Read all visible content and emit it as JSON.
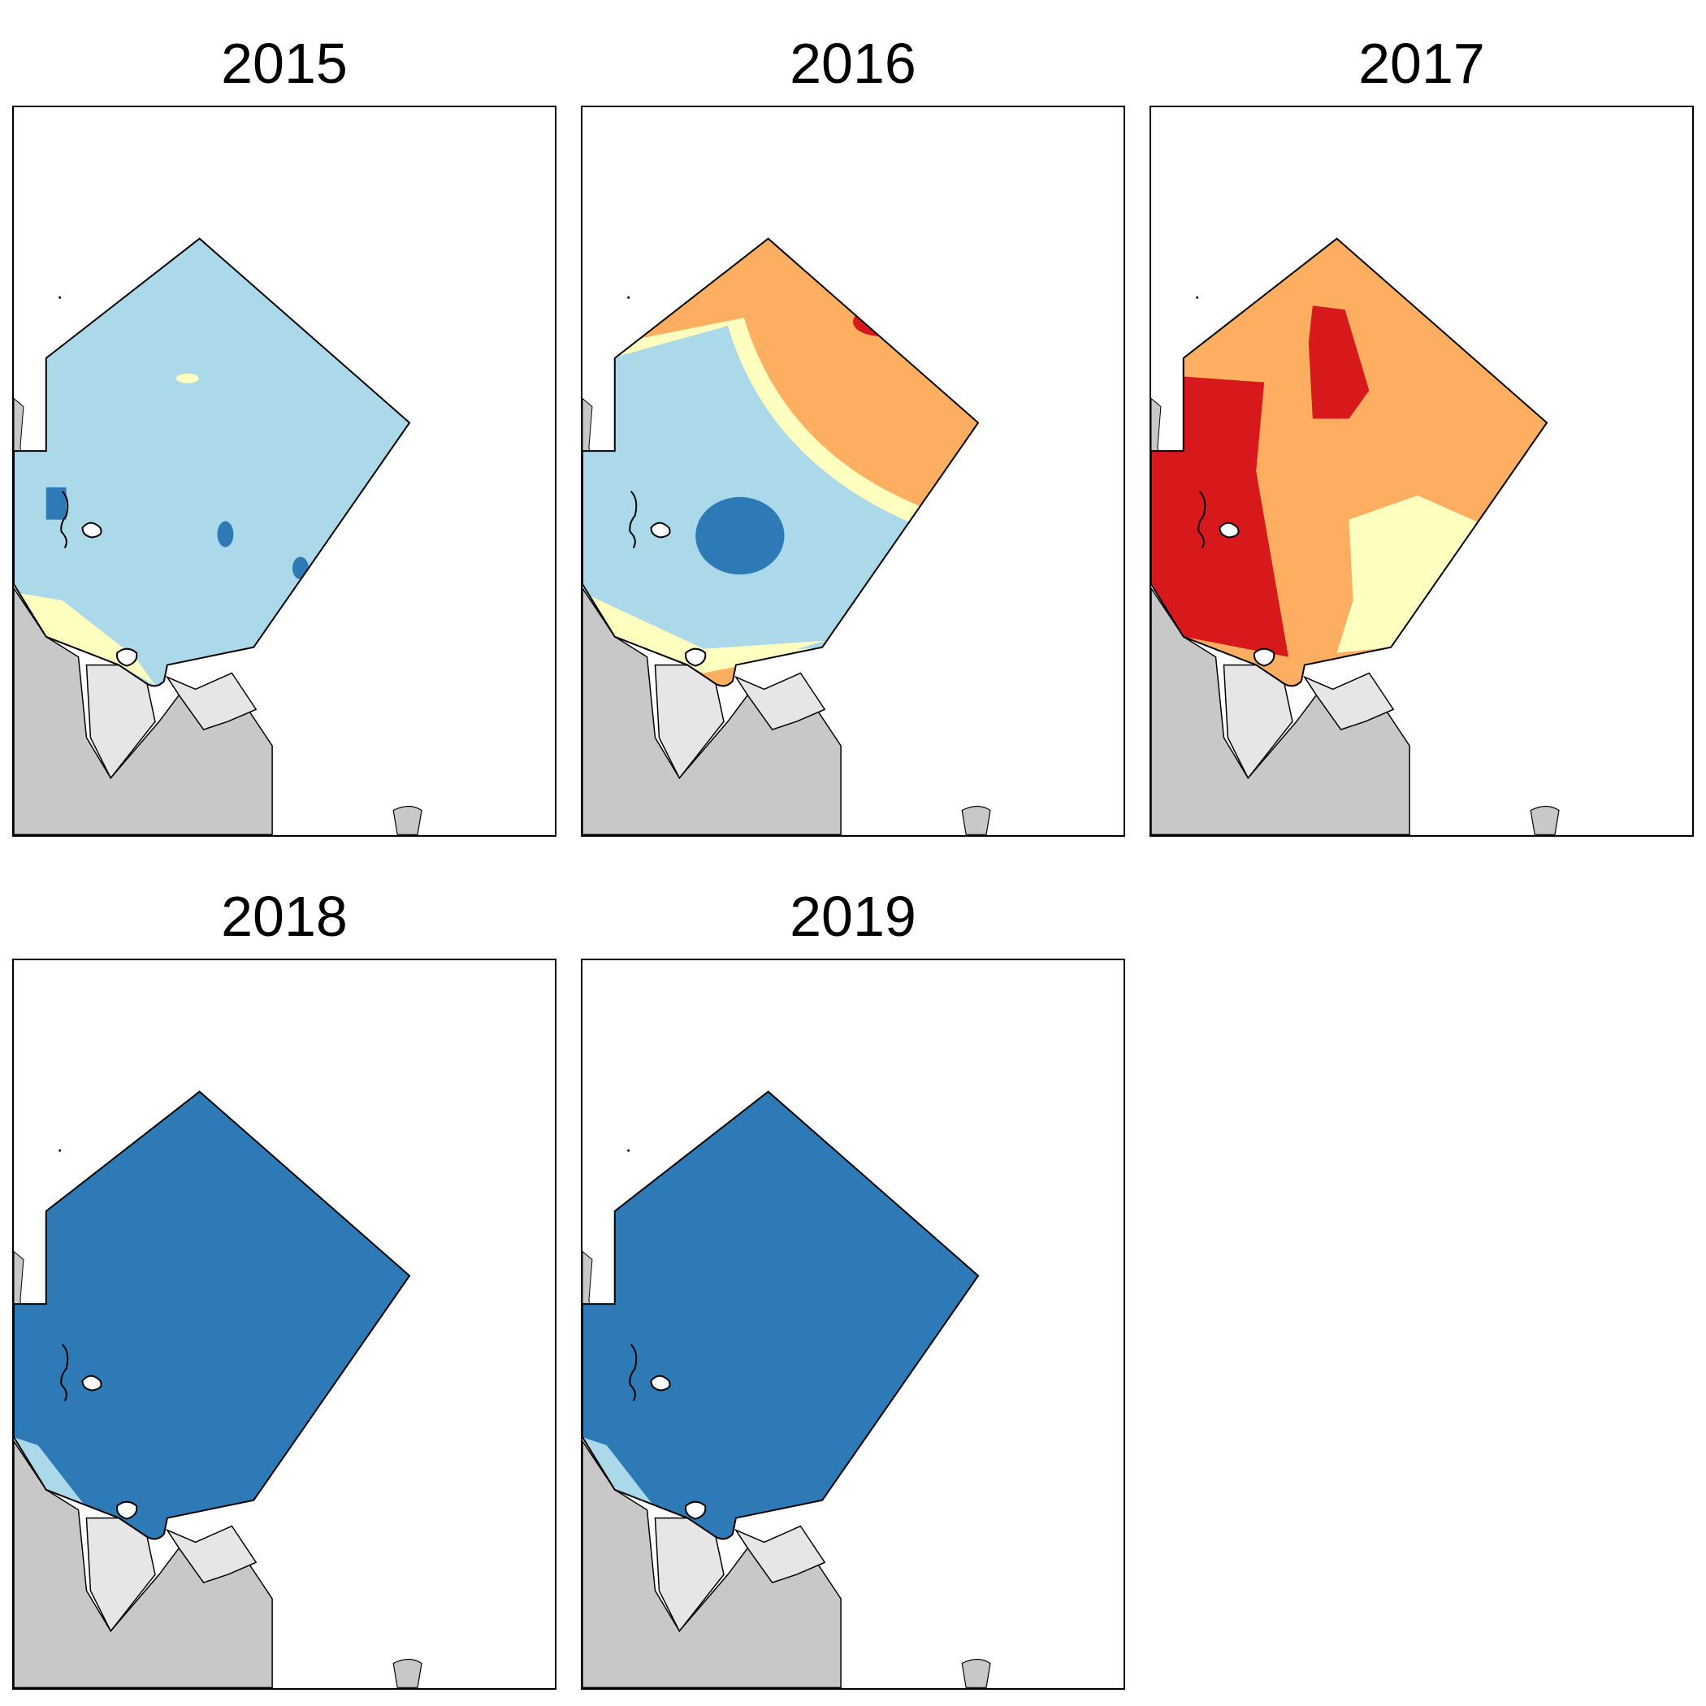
{
  "panels": [
    {
      "id": "p2015",
      "title": "2015",
      "scheme": "light-blue-dominant"
    },
    {
      "id": "p2016",
      "title": "2016",
      "scheme": "orange-gradient"
    },
    {
      "id": "p2017",
      "title": "2017",
      "scheme": "red-orange-dominant"
    },
    {
      "id": "p2018",
      "title": "2018",
      "scheme": "dark-blue-dominant"
    },
    {
      "id": "p2019",
      "title": "2019",
      "scheme": "dark-blue-dominant"
    }
  ],
  "colors": {
    "dark_blue": "#2e7ab6",
    "light_blue": "#abd9e9",
    "pale_yellow": "#ffffbf",
    "orange": "#fdae61",
    "red": "#d7191c",
    "land_dark": "#c8c8c8",
    "land_light": "#e6e6e6"
  }
}
